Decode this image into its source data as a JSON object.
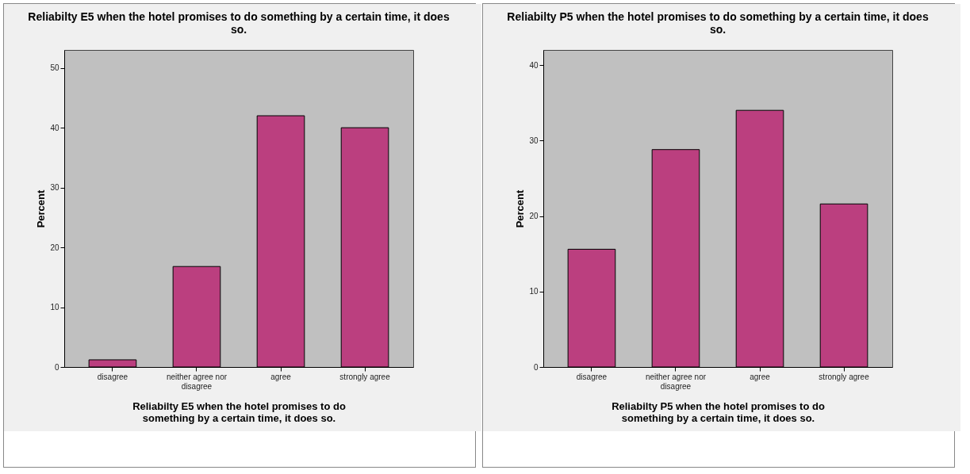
{
  "chart_data": [
    {
      "type": "bar",
      "title": "Reliabilty E5 when the hotel promises to do something by a certain time, it does so.",
      "xlabel": "Reliabilty E5 when the hotel promises to do something by a certain time, it does so.",
      "ylabel": "Percent",
      "categories": [
        "disagree",
        "neither agree nor disagree",
        "agree",
        "strongly agree"
      ],
      "values": [
        1.2,
        16.8,
        42.0,
        40.0
      ],
      "color": "#bb3f7f",
      "ylim": [
        0,
        53
      ],
      "yticks": [
        0,
        10,
        20,
        30,
        40,
        50
      ]
    },
    {
      "type": "bar",
      "title": "Reliabilty P5 when the hotel promises to do something by a certain time, it does so.",
      "xlabel": "Reliabilty P5 when the hotel promises to do something by a certain time, it does so.",
      "ylabel": "Percent",
      "categories": [
        "disagree",
        "neither agree nor disagree",
        "agree",
        "strongly agree"
      ],
      "values": [
        15.6,
        28.8,
        34.0,
        21.6
      ],
      "color": "#bb3f7f",
      "ylim": [
        0,
        42
      ],
      "yticks": [
        0,
        10,
        20,
        30,
        40
      ]
    }
  ]
}
